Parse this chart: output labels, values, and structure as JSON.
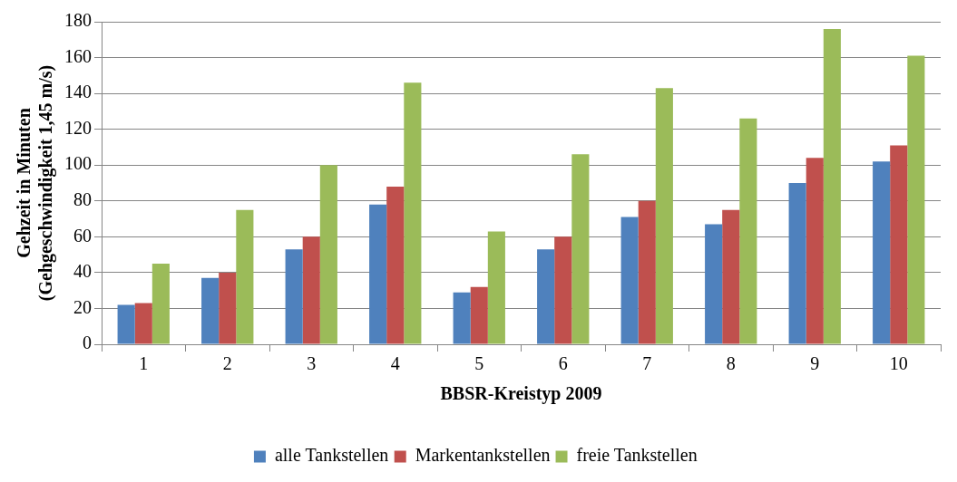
{
  "chart_data": {
    "type": "bar",
    "xlabel": "BBSR-Kreistyp 2009",
    "ylabel": "Gehzeit in Minuten\n(Gehgeschwindigkeit 1,45 m/s)",
    "categories": [
      "1",
      "2",
      "3",
      "4",
      "5",
      "6",
      "7",
      "8",
      "9",
      "10"
    ],
    "series": [
      {
        "name": "alle Tankstellen",
        "color": "#4f81bd",
        "values": [
          22,
          37,
          53,
          78,
          29,
          53,
          71,
          67,
          90,
          102
        ]
      },
      {
        "name": "Markentankstellen",
        "color": "#c0504d",
        "values": [
          23,
          40,
          60,
          88,
          32,
          60,
          80,
          75,
          104,
          111
        ]
      },
      {
        "name": "freie Tankstellen",
        "color": "#9bbb59",
        "values": [
          45,
          75,
          100,
          146,
          63,
          106,
          143,
          126,
          176,
          161
        ]
      }
    ],
    "ylim": [
      0,
      180
    ],
    "yticks": [
      0,
      20,
      40,
      60,
      80,
      100,
      120,
      140,
      160,
      180
    ],
    "grid": "y",
    "legend": "bottom"
  }
}
